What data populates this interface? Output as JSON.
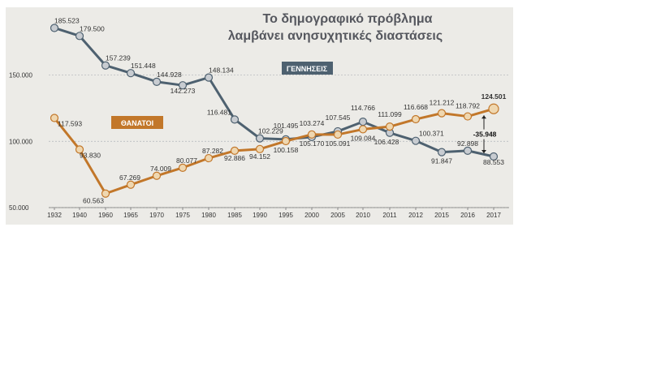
{
  "chart_data": {
    "type": "line",
    "title_lines": [
      "Το δημογραφικό πρόβλημα",
      "λαμβάνει ανησυχητικές διαστάσεις"
    ],
    "x": [
      "1932",
      "1940",
      "1960",
      "1965",
      "1970",
      "1975",
      "1980",
      "1985",
      "1990",
      "1995",
      "2000",
      "2005",
      "2010",
      "2011",
      "2012",
      "2015",
      "2016",
      "2017"
    ],
    "y_ticks": [
      "50.000",
      "100.000",
      "150.000"
    ],
    "ylim": [
      50000,
      195000
    ],
    "series": [
      {
        "name": "ΓΕΝΝΗΣΕΙΣ",
        "color": "#4e6170",
        "values": [
          185523,
          179500,
          157239,
          151448,
          144928,
          142273,
          148134,
          116481,
          102229,
          101495,
          103274,
          107545,
          114766,
          106428,
          100371,
          91847,
          92898,
          88553
        ],
        "labels": [
          "185.523",
          "179.500",
          "157.239",
          "151.448",
          "144.928",
          "142.273",
          "148.134",
          "116.481",
          "102.229",
          "101.495",
          "103.274",
          "107.545",
          "114.766",
          "106.428",
          "100.371",
          "91.847",
          "92.898",
          "88.553"
        ]
      },
      {
        "name": "ΘΑΝΑΤΟΙ",
        "color": "#c2772a",
        "values": [
          117593,
          93830,
          60563,
          67269,
          74009,
          80077,
          87282,
          92886,
          94152,
          100158,
          105170,
          105091,
          109084,
          111099,
          116668,
          121212,
          118792,
          124501
        ],
        "labels": [
          "117.593",
          "93.830",
          "60.563",
          "67.269",
          "74.009",
          "80.077",
          "87.282",
          "92.886",
          "94.152",
          "100.158",
          "105.170",
          "105.091",
          "109.084",
          "111.099",
          "116.668",
          "121.212",
          "118.792",
          "124.501"
        ]
      }
    ],
    "difference_label": "-35.948",
    "grid": true
  },
  "colors": {
    "background": "#ecebe7",
    "grid": "#aeb3b8"
  }
}
